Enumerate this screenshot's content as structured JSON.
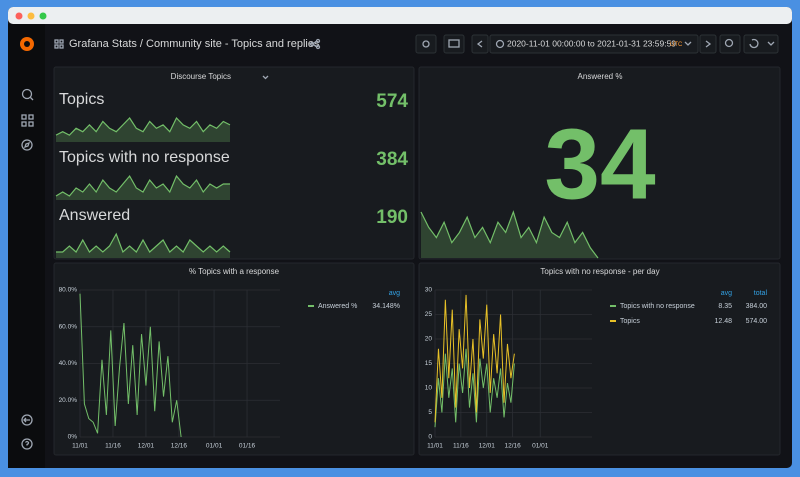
{
  "header": {
    "title": "Grafana Stats / Community site - Topics and replies",
    "time_range": "2020-11-01 00:00:00 to 2021-01-31 23:59:59",
    "timezone": "UTC"
  },
  "stat_panels": [
    {
      "title": "Discourse Topics",
      "color": "#73bf69",
      "stats": [
        {
          "name": "Topics",
          "value": 574,
          "sparkline": [
            2,
            3,
            2,
            4,
            3,
            5,
            3,
            6,
            4,
            3,
            5,
            7,
            4,
            3,
            6,
            4,
            5,
            3,
            7,
            5,
            4,
            6,
            3,
            5,
            4,
            6,
            5
          ]
        },
        {
          "name": "Topics with no response",
          "value": 384,
          "sparkline": [
            1,
            2,
            1,
            3,
            2,
            4,
            2,
            5,
            3,
            2,
            4,
            6,
            3,
            2,
            5,
            3,
            4,
            2,
            6,
            4,
            3,
            5,
            2,
            4,
            3,
            4,
            4
          ]
        },
        {
          "name": "Answered",
          "value": 190,
          "sparkline": [
            1,
            1,
            2,
            1,
            3,
            1,
            2,
            1,
            2,
            4,
            1,
            2,
            1,
            3,
            1,
            2,
            3,
            1,
            2,
            1,
            3,
            2,
            1,
            2,
            1,
            2,
            1
          ]
        }
      ]
    },
    {
      "title": "Answered %",
      "color": "#73bf69",
      "stats": [
        {
          "value": 34,
          "sparkline": [
            9,
            6,
            4,
            7,
            3,
            5,
            8,
            4,
            6,
            3,
            7,
            5,
            9,
            4,
            6,
            3,
            8,
            5,
            4,
            7,
            3,
            5,
            2,
            0
          ]
        }
      ]
    }
  ],
  "chart_data": [
    {
      "type": "line",
      "title": "% Topics with a response",
      "x": [
        "11/01",
        "11/03",
        "11/05",
        "11/07",
        "11/09",
        "11/11",
        "11/13",
        "11/15",
        "11/17",
        "11/19",
        "11/21",
        "11/23",
        "11/25",
        "11/27",
        "11/29",
        "12/01",
        "12/03",
        "12/05",
        "12/07",
        "12/09",
        "12/11",
        "12/13",
        "12/15",
        "12/17"
      ],
      "xlim": [
        "11/01",
        "01/31"
      ],
      "xticks": [
        "11/01",
        "11/16",
        "12/01",
        "12/16",
        "01/01",
        "01/16"
      ],
      "ylim": [
        0,
        80
      ],
      "yticks": [
        {
          "value": 0,
          "label": "0%"
        },
        {
          "value": 20,
          "label": "20.0%"
        },
        {
          "value": 40,
          "label": "40.0%"
        },
        {
          "value": 60,
          "label": "60.0%"
        },
        {
          "value": 80,
          "label": "80.0%"
        }
      ],
      "grid": true,
      "legend_columns": [
        "avg"
      ],
      "series": [
        {
          "name": "Answered %",
          "color": "#73bf69",
          "stats": [
            {
              "value": 34.148,
              "label": "34.148%"
            }
          ],
          "values": [
            78,
            18,
            10,
            8,
            2,
            42,
            12,
            58,
            6,
            38,
            62,
            18,
            50,
            12,
            56,
            28,
            60,
            14,
            52,
            22,
            44,
            8,
            20,
            0
          ]
        }
      ]
    },
    {
      "type": "line",
      "title": "Topics with no response - per day",
      "x": [
        "11/01",
        "11/03",
        "11/05",
        "11/07",
        "11/09",
        "11/11",
        "11/13",
        "11/15",
        "11/17",
        "11/19",
        "11/21",
        "11/23",
        "11/25",
        "11/27",
        "11/29",
        "12/01",
        "12/03",
        "12/05",
        "12/07",
        "12/09",
        "12/11",
        "12/13",
        "12/15",
        "12/17"
      ],
      "xlim": [
        "11/01",
        "01/31"
      ],
      "xticks": [
        "11/01",
        "11/16",
        "12/01",
        "12/16",
        "01/01"
      ],
      "ylim": [
        0,
        30
      ],
      "yticks": [
        0,
        5,
        10,
        15,
        20,
        25,
        30
      ],
      "grid": true,
      "legend_columns": [
        "avg",
        "total"
      ],
      "series": [
        {
          "name": "Topics with no response",
          "color": "#73bf69",
          "stats": [
            8.35,
            {
              "value": 384,
              "label": "384.00"
            }
          ],
          "values": [
            2,
            12,
            5,
            17,
            8,
            14,
            3,
            15,
            9,
            18,
            6,
            13,
            3,
            16,
            10,
            15,
            5,
            12,
            8,
            14,
            4,
            11,
            7,
            15
          ]
        },
        {
          "name": "Topics",
          "color": "#e8c127",
          "stats": [
            12.48,
            {
              "value": 574,
              "label": "574.00"
            }
          ],
          "values": [
            3,
            18,
            8,
            28,
            12,
            26,
            6,
            22,
            14,
            29,
            10,
            20,
            5,
            24,
            16,
            27,
            9,
            21,
            13,
            25,
            7,
            19,
            12,
            17
          ]
        }
      ]
    }
  ]
}
